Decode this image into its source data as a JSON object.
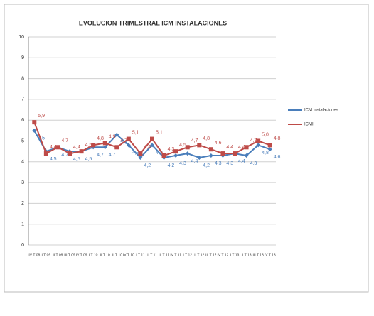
{
  "chart_data": {
    "type": "line",
    "title": "EVOLUCION TRIMESTRAL ICM INSTALACIONES",
    "categories": [
      "IV T 08",
      "I T 09",
      "II T 09",
      "III T 09",
      "IV T 09",
      "I T 10",
      "II T 10",
      "III T 10",
      "IV T 10",
      "I T 11",
      "II T 11",
      "III T 11",
      "IV T 11",
      "I T 12",
      "II T 12",
      "III T 12",
      "IV T 12",
      "I T 13",
      "II T 13",
      "III T 13",
      "IV T 13"
    ],
    "series": [
      {
        "name": "ICM Instalaciones",
        "color": "#4a7ebb",
        "values": [
          5.5,
          4.5,
          4.7,
          4.5,
          4.5,
          4.7,
          4.7,
          5.3,
          4.8,
          4.2,
          4.8,
          4.2,
          4.3,
          4.4,
          4.2,
          4.3,
          4.3,
          4.4,
          4.3,
          4.8,
          4.6
        ],
        "value_labels": [
          "5,5",
          "4,5",
          "4,7",
          "4,5",
          "4,5",
          "4,7",
          "4,7",
          "5,3",
          "4,8",
          "4,2",
          "4,8",
          "4,2",
          "4,3",
          "4,4",
          "4,2",
          "4,3",
          "4,3",
          "4,4",
          "4,3",
          "4,8",
          "4,6"
        ]
      },
      {
        "name": "ICMI",
        "color": "#be4b48",
        "values": [
          5.9,
          4.4,
          4.7,
          4.4,
          4.5,
          4.8,
          4.9,
          4.7,
          5.1,
          4.4,
          5.1,
          4.3,
          4.5,
          4.7,
          4.8,
          4.6,
          4.4,
          4.4,
          4.7,
          5.0,
          4.8
        ],
        "value_labels": [
          "5,9",
          "4,4",
          "4,7",
          "4,4",
          "4,5",
          "4,8",
          "4,9",
          "4,7",
          "5,1",
          "4,4",
          "5,1",
          "4,3",
          "4,5",
          "4,7",
          "4,8",
          "4,6",
          "4,4",
          "4,4",
          "4,7",
          "5,0",
          "4,8"
        ]
      }
    ],
    "ylim": [
      0,
      10
    ],
    "yticks": [
      0,
      1,
      2,
      3,
      4,
      5,
      6,
      7,
      8,
      9,
      10
    ],
    "grid": true,
    "legend": "right"
  }
}
